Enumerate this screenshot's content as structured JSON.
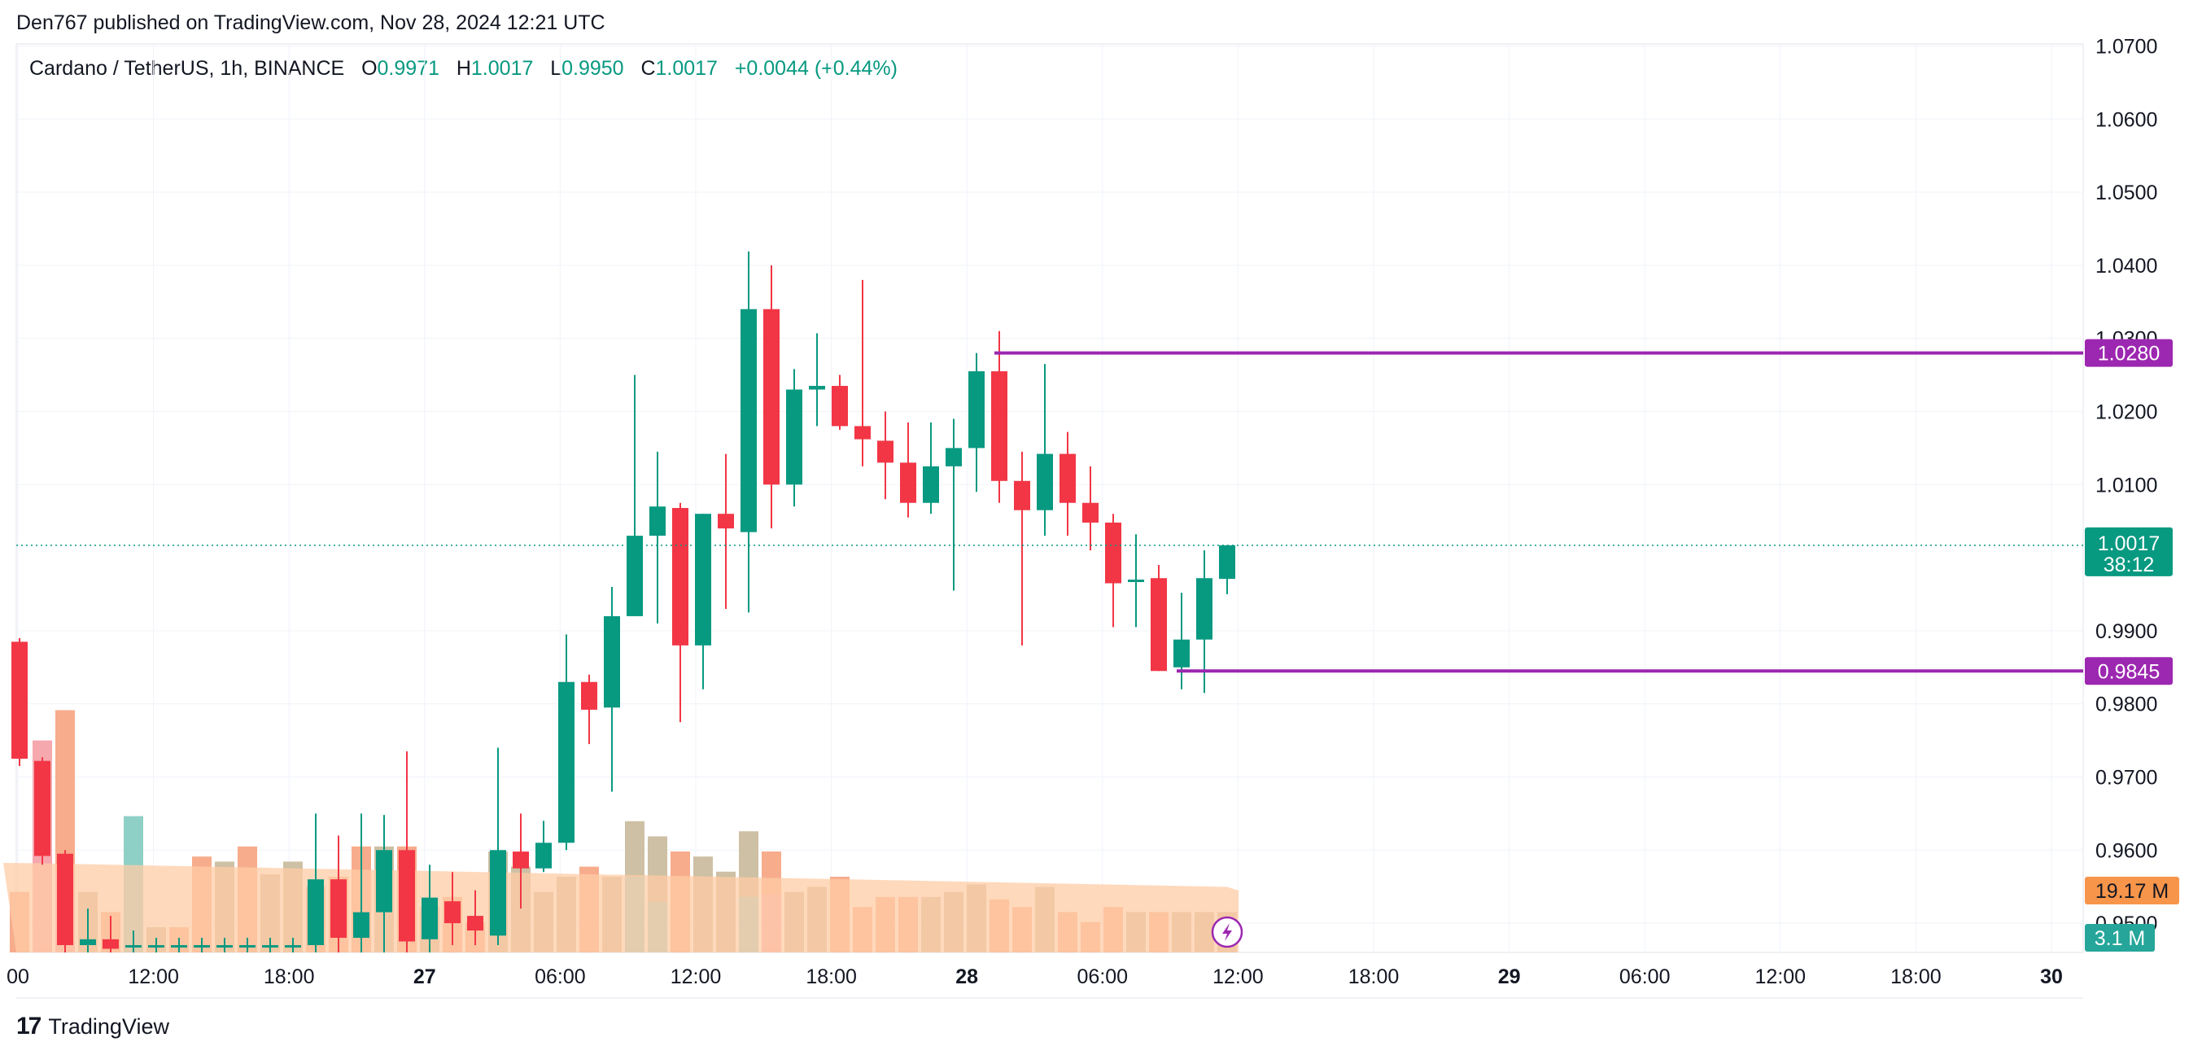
{
  "header": {
    "text": "Den767 published on TradingView.com, Nov 28, 2024 12:21 UTC"
  },
  "legend": {
    "symbol": "Cardano / TetherUS, 1h, BINANCE",
    "open_label": "O",
    "open": "0.9971",
    "high_label": "H",
    "high": "1.0017",
    "low_label": "L",
    "low": "0.9950",
    "close_label": "C",
    "close": "1.0017",
    "change": "+0.0044 (+0.44%)"
  },
  "footer": {
    "logo_mark": "17",
    "brand": "TradingView"
  },
  "colors": {
    "up": "#089981",
    "down": "#f23645",
    "level": "#9c27b0",
    "vol_ma": "#ffcca6",
    "vol_tag": "#f7954a"
  },
  "chart_data": {
    "type": "candlestick",
    "y_ticks": [
      "1.0700",
      "1.0600",
      "1.0500",
      "1.0400",
      "1.0300",
      "1.0200",
      "1.0100",
      "0.9900",
      "0.9800",
      "0.9700",
      "0.9600",
      "0.9500"
    ],
    "ylim": [
      0.946,
      1.07
    ],
    "x_ticks": [
      "00",
      "12:00",
      "18:00",
      "27",
      "06:00",
      "12:00",
      "18:00",
      "28",
      "06:00",
      "12:00",
      "18:00",
      "29",
      "06:00",
      "12:00",
      "18:00",
      "30"
    ],
    "x_ticks_bold": [
      "27",
      "28",
      "29",
      "30"
    ],
    "levels": [
      {
        "price": 1.028,
        "label": "1.0280",
        "from_index": 43
      },
      {
        "price": 0.9845,
        "label": "0.9845",
        "from_index": 51
      }
    ],
    "last_price": {
      "value": 1.0017,
      "label": "1.0017",
      "countdown": "38:12"
    },
    "volume_labels": {
      "ma": "19.17 M",
      "last": "3.1 M"
    },
    "candles": [
      {
        "o": 0.9885,
        "h": 0.989,
        "l": 0.9715,
        "c": 0.9725
      },
      {
        "o": 0.9722,
        "h": 0.9727,
        "l": 0.958,
        "c": 0.9592
      },
      {
        "o": 0.9595,
        "h": 0.96,
        "l": 0.946,
        "c": 0.947
      },
      {
        "o": 0.947,
        "h": 0.952,
        "l": 0.946,
        "c": 0.9478
      },
      {
        "o": 0.9478,
        "h": 0.951,
        "l": 0.946,
        "c": 0.9465
      },
      {
        "o": 0.947,
        "h": 0.949,
        "l": 0.946,
        "c": 0.947
      },
      {
        "o": 0.947,
        "h": 0.948,
        "l": 0.946,
        "c": 0.947
      },
      {
        "o": 0.947,
        "h": 0.948,
        "l": 0.946,
        "c": 0.947
      },
      {
        "o": 0.947,
        "h": 0.948,
        "l": 0.946,
        "c": 0.947
      },
      {
        "o": 0.947,
        "h": 0.948,
        "l": 0.946,
        "c": 0.947
      },
      {
        "o": 0.947,
        "h": 0.948,
        "l": 0.946,
        "c": 0.947
      },
      {
        "o": 0.947,
        "h": 0.948,
        "l": 0.946,
        "c": 0.947
      },
      {
        "o": 0.947,
        "h": 0.948,
        "l": 0.946,
        "c": 0.947
      },
      {
        "o": 0.947,
        "h": 0.965,
        "l": 0.946,
        "c": 0.956
      },
      {
        "o": 0.956,
        "h": 0.962,
        "l": 0.946,
        "c": 0.948
      },
      {
        "o": 0.948,
        "h": 0.965,
        "l": 0.946,
        "c": 0.9515
      },
      {
        "o": 0.9515,
        "h": 0.9648,
        "l": 0.946,
        "c": 0.96
      },
      {
        "o": 0.96,
        "h": 0.9735,
        "l": 0.946,
        "c": 0.9475
      },
      {
        "o": 0.9478,
        "h": 0.958,
        "l": 0.946,
        "c": 0.9535
      },
      {
        "o": 0.953,
        "h": 0.957,
        "l": 0.947,
        "c": 0.95
      },
      {
        "o": 0.951,
        "h": 0.9545,
        "l": 0.947,
        "c": 0.949
      },
      {
        "o": 0.9483,
        "h": 0.974,
        "l": 0.947,
        "c": 0.96
      },
      {
        "o": 0.9598,
        "h": 0.965,
        "l": 0.952,
        "c": 0.9575
      },
      {
        "o": 0.9575,
        "h": 0.964,
        "l": 0.957,
        "c": 0.961
      },
      {
        "o": 0.961,
        "h": 0.9895,
        "l": 0.96,
        "c": 0.983
      },
      {
        "o": 0.983,
        "h": 0.984,
        "l": 0.9745,
        "c": 0.9792
      },
      {
        "o": 0.9795,
        "h": 0.996,
        "l": 0.968,
        "c": 0.992
      },
      {
        "o": 0.992,
        "h": 1.025,
        "l": 0.992,
        "c": 1.003
      },
      {
        "o": 1.003,
        "h": 1.0145,
        "l": 0.991,
        "c": 1.007
      },
      {
        "o": 1.0068,
        "h": 1.0075,
        "l": 0.9775,
        "c": 0.988
      },
      {
        "o": 0.988,
        "h": 1.006,
        "l": 0.982,
        "c": 1.006
      },
      {
        "o": 1.006,
        "h": 1.0142,
        "l": 0.993,
        "c": 1.004
      },
      {
        "o": 1.0035,
        "h": 1.0419,
        "l": 0.9925,
        "c": 1.034
      },
      {
        "o": 1.034,
        "h": 1.04,
        "l": 1.004,
        "c": 1.01
      },
      {
        "o": 1.01,
        "h": 1.0258,
        "l": 1.007,
        "c": 1.023
      },
      {
        "o": 1.023,
        "h": 1.0307,
        "l": 1.018,
        "c": 1.0235
      },
      {
        "o": 1.0235,
        "h": 1.025,
        "l": 1.0175,
        "c": 1.018
      },
      {
        "o": 1.018,
        "h": 1.038,
        "l": 1.0125,
        "c": 1.0162
      },
      {
        "o": 1.016,
        "h": 1.02,
        "l": 1.008,
        "c": 1.013
      },
      {
        "o": 1.013,
        "h": 1.0185,
        "l": 1.0055,
        "c": 1.0075
      },
      {
        "o": 1.0075,
        "h": 1.0185,
        "l": 1.006,
        "c": 1.0125
      },
      {
        "o": 1.0125,
        "h": 1.019,
        "l": 0.9955,
        "c": 1.015
      },
      {
        "o": 1.015,
        "h": 1.028,
        "l": 1.009,
        "c": 1.0255
      },
      {
        "o": 1.0255,
        "h": 1.031,
        "l": 1.0075,
        "c": 1.0105
      },
      {
        "o": 1.0105,
        "h": 1.0145,
        "l": 0.988,
        "c": 1.0065
      },
      {
        "o": 1.0065,
        "h": 1.0265,
        "l": 1.003,
        "c": 1.0142
      },
      {
        "o": 1.0142,
        "h": 1.0172,
        "l": 1.003,
        "c": 1.0075
      },
      {
        "o": 1.0075,
        "h": 1.0125,
        "l": 1.001,
        "c": 1.0048
      },
      {
        "o": 1.0048,
        "h": 1.006,
        "l": 0.9905,
        "c": 0.9965
      },
      {
        "o": 0.9968,
        "h": 1.0032,
        "l": 0.9905,
        "c": 0.997
      },
      {
        "o": 0.9972,
        "h": 0.999,
        "l": 0.9845,
        "c": 0.9845
      },
      {
        "o": 0.985,
        "h": 0.9952,
        "l": 0.982,
        "c": 0.9888
      },
      {
        "o": 0.9888,
        "h": 1.001,
        "l": 0.9815,
        "c": 0.9972
      },
      {
        "o": 0.9971,
        "h": 1.0017,
        "l": 0.995,
        "c": 1.0017
      }
    ],
    "volumes": [
      {
        "v": 120,
        "up": false
      },
      {
        "v": 250,
        "up": false
      },
      {
        "v": 480,
        "up": false
      },
      {
        "v": 120,
        "up": true
      },
      {
        "v": 80,
        "up": false
      },
      {
        "v": 50,
        "up": true
      },
      {
        "v": 50,
        "up": true
      },
      {
        "v": 50,
        "up": false
      },
      {
        "v": 190,
        "up": false
      },
      {
        "v": 180,
        "up": true
      },
      {
        "v": 210,
        "up": false
      },
      {
        "v": 155,
        "up": true
      },
      {
        "v": 180,
        "up": true
      },
      {
        "v": 130,
        "up": false
      },
      {
        "v": 150,
        "up": false
      },
      {
        "v": 210,
        "up": false
      },
      {
        "v": 210,
        "up": true
      },
      {
        "v": 210,
        "up": false
      },
      {
        "v": 90,
        "up": true
      },
      {
        "v": 110,
        "up": false
      },
      {
        "v": 60,
        "up": false
      },
      {
        "v": 200,
        "up": true
      },
      {
        "v": 170,
        "up": true
      },
      {
        "v": 120,
        "up": true
      },
      {
        "v": 150,
        "up": true
      },
      {
        "v": 170,
        "up": false
      },
      {
        "v": 150,
        "up": true
      },
      {
        "v": 260,
        "up": true
      },
      {
        "v": 230,
        "up": true
      },
      {
        "v": 200,
        "up": false
      },
      {
        "v": 190,
        "up": true
      },
      {
        "v": 160,
        "up": true
      },
      {
        "v": 240,
        "up": true
      },
      {
        "v": 200,
        "up": false
      },
      {
        "v": 120,
        "up": true
      },
      {
        "v": 130,
        "up": true
      },
      {
        "v": 150,
        "up": false
      },
      {
        "v": 90,
        "up": false
      },
      {
        "v": 110,
        "up": false
      },
      {
        "v": 110,
        "up": false
      },
      {
        "v": 110,
        "up": true
      },
      {
        "v": 120,
        "up": true
      },
      {
        "v": 135,
        "up": true
      },
      {
        "v": 105,
        "up": false
      },
      {
        "v": 90,
        "up": false
      },
      {
        "v": 130,
        "up": true
      },
      {
        "v": 80,
        "up": false
      },
      {
        "v": 60,
        "up": false
      },
      {
        "v": 90,
        "up": false
      },
      {
        "v": 80,
        "up": true
      },
      {
        "v": 80,
        "up": false
      },
      {
        "v": 80,
        "up": true
      },
      {
        "v": 80,
        "up": true
      },
      {
        "v": 80,
        "up": true
      }
    ],
    "volume_highlight": [
      {
        "index": 1,
        "v": 420
      },
      {
        "index": 2,
        "v": 160
      },
      {
        "index": 5,
        "v": 270
      },
      {
        "index": 27,
        "v": 150
      },
      {
        "index": 28,
        "v": 100
      },
      {
        "index": 32,
        "v": 110
      },
      {
        "index": 33,
        "v": 115
      }
    ]
  }
}
